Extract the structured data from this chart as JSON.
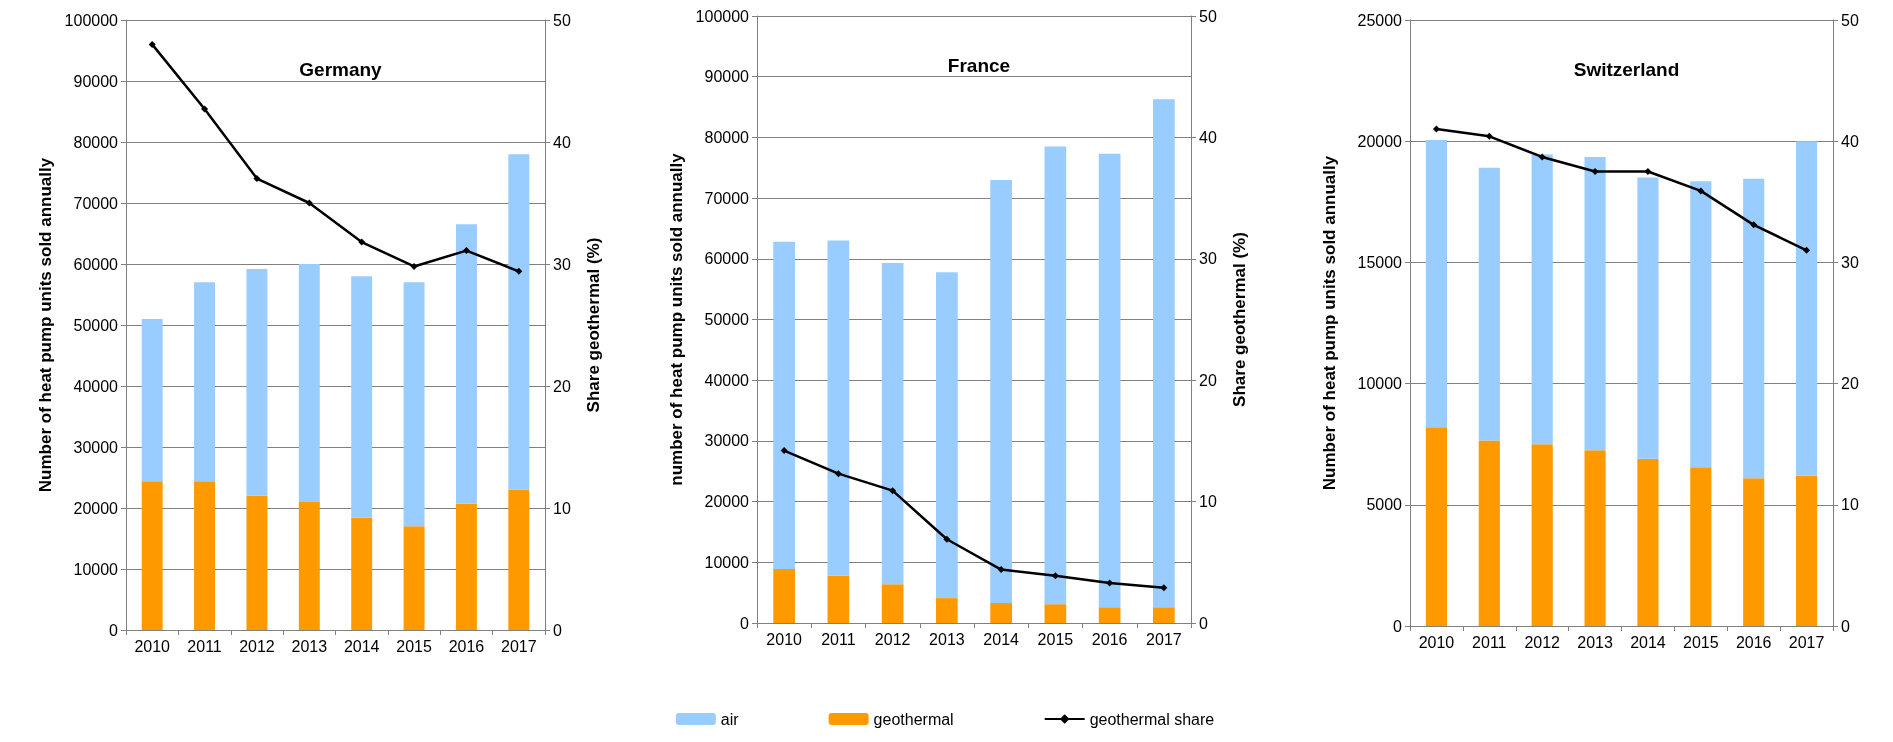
{
  "chart_data": [
    {
      "type": "bar",
      "title": "Germany",
      "ylabel": "Number of heat pump units sold annually",
      "y2label": "Share geothermal (%)",
      "categories": [
        "2010",
        "2011",
        "2012",
        "2013",
        "2014",
        "2015",
        "2016",
        "2017"
      ],
      "stacked": true,
      "series": [
        {
          "color": "#ff9900",
          "values": [
            24400,
            24400,
            22000,
            21000,
            18400,
            17000,
            20700,
            23000
          ]
        },
        {
          "color": "#99ccff",
          "values": [
            26600,
            32600,
            37200,
            39000,
            39600,
            40000,
            45800,
            55000
          ]
        },
        {
          "type": "line",
          "axis": "y2",
          "color": "#000000",
          "values": [
            48,
            42.7,
            37,
            35,
            31.8,
            29.8,
            31.1,
            29.4
          ]
        }
      ],
      "ylim": [
        0,
        100000
      ],
      "yticks": [
        0,
        10000,
        20000,
        30000,
        40000,
        50000,
        60000,
        70000,
        80000,
        90000,
        100000
      ],
      "y2lim": [
        0,
        50
      ],
      "y2ticks": [
        0,
        10,
        20,
        30,
        40,
        50
      ],
      "grid": "y",
      "marker": "diamond",
      "legend": false
    },
    {
      "type": "bar",
      "title": "France",
      "ylabel": "number of heat pump units sold annually",
      "y2label": "Share geothermal (%)",
      "categories": [
        "2010",
        "2011",
        "2012",
        "2013",
        "2014",
        "2015",
        "2016",
        "2017"
      ],
      "stacked": true,
      "series": [
        {
          "name": "geothermal",
          "color": "#ff9900",
          "values": [
            8900,
            7800,
            6400,
            4100,
            3300,
            3100,
            2600,
            2600
          ]
        },
        {
          "name": "air",
          "color": "#99ccff",
          "values": [
            53900,
            55200,
            52900,
            53700,
            69700,
            75400,
            74700,
            83700
          ]
        },
        {
          "name": "geothermal share",
          "type": "line",
          "axis": "y2",
          "color": "#000000",
          "values": [
            14.2,
            12.3,
            10.9,
            6.9,
            4.4,
            3.9,
            3.3,
            2.9
          ]
        }
      ],
      "ylim": [
        0,
        100000
      ],
      "yticks": [
        0,
        10000,
        20000,
        30000,
        40000,
        50000,
        60000,
        70000,
        80000,
        90000,
        100000
      ],
      "y2lim": [
        0,
        50
      ],
      "y2ticks": [
        0,
        10,
        20,
        30,
        40,
        50
      ],
      "grid": "y",
      "marker": "diamond",
      "legend": "bottom"
    },
    {
      "type": "bar",
      "title": "Switzerland",
      "ylabel": "Number of heat pump units sold annually",
      "categories": [
        "2010",
        "2011",
        "2012",
        "2013",
        "2014",
        "2015",
        "2016",
        "2017"
      ],
      "stacked": true,
      "series": [
        {
          "color": "#ff9900",
          "values": [
            8200,
            7650,
            7500,
            7250,
            6900,
            6550,
            6100,
            6200
          ]
        },
        {
          "color": "#99ccff",
          "values": [
            11850,
            11250,
            11950,
            12100,
            11600,
            11800,
            12350,
            13800
          ]
        },
        {
          "type": "line",
          "axis": "y2",
          "color": "#000000",
          "values": [
            41.0,
            40.4,
            38.7,
            37.5,
            37.5,
            35.9,
            33.1,
            31.0
          ]
        }
      ],
      "ylim": [
        0,
        25000
      ],
      "yticks": [
        0,
        5000,
        10000,
        15000,
        20000,
        25000
      ],
      "y2lim": [
        0,
        50
      ],
      "y2ticks": [
        0,
        10,
        20,
        30,
        40,
        50
      ],
      "grid": "y",
      "marker": "diamond",
      "legend": false
    }
  ]
}
